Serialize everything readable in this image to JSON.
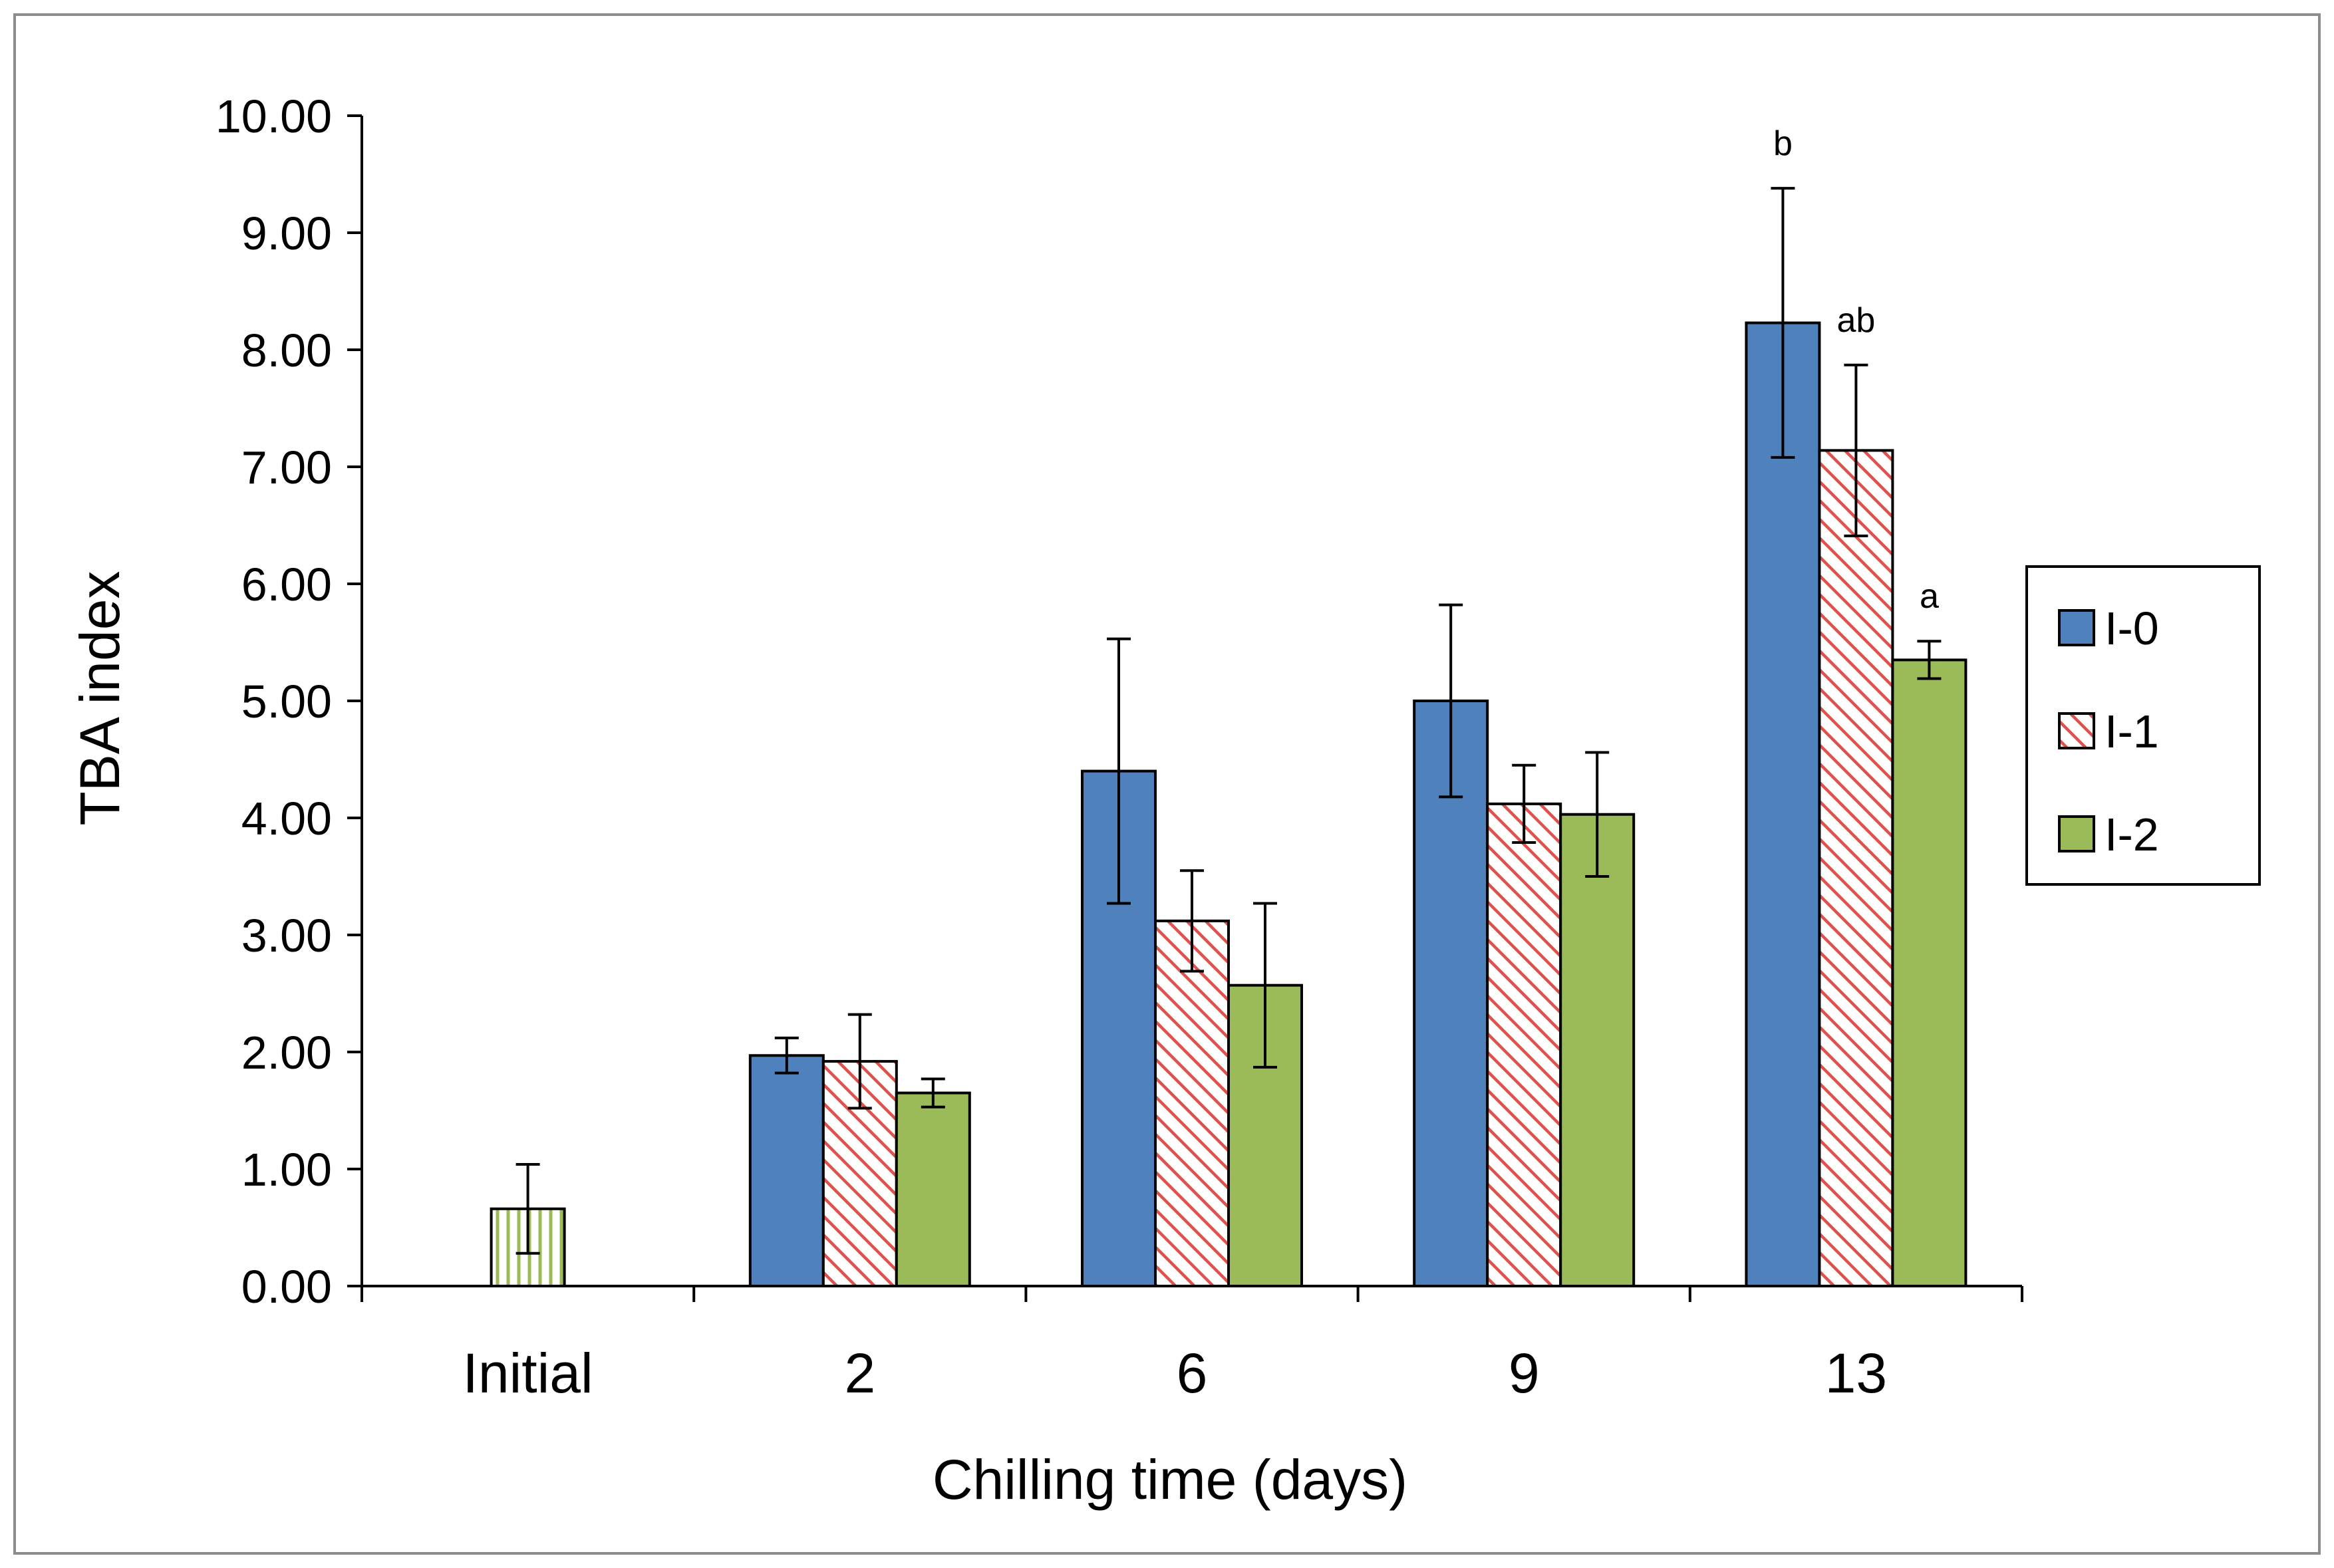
{
  "chart_data": {
    "type": "bar",
    "xlabel": "Chilling time (days)",
    "ylabel": "TBA index",
    "ylim": [
      0,
      10
    ],
    "y_ticks": [
      "0.00",
      "1.00",
      "2.00",
      "3.00",
      "4.00",
      "5.00",
      "6.00",
      "7.00",
      "8.00",
      "9.00",
      "10.00"
    ],
    "categories": [
      "Initial",
      "2",
      "6",
      "9",
      "13"
    ],
    "legend": {
      "position": "right"
    },
    "grid": false,
    "initial": {
      "value": 0.66,
      "error": 0.38,
      "color": "#9bbb59",
      "pattern": "vertical-lines"
    },
    "series": [
      {
        "name": "I-0",
        "color": "#4f81bd",
        "pattern": "solid",
        "values": [
          null,
          1.97,
          4.4,
          5.0,
          8.23
        ],
        "errors": [
          null,
          0.15,
          1.13,
          0.82,
          1.15
        ],
        "letters": [
          null,
          "",
          "",
          "",
          "b"
        ]
      },
      {
        "name": "I-1",
        "color": "#e0504d",
        "pattern": "diagonal-hatch",
        "values": [
          null,
          1.92,
          3.12,
          4.12,
          7.14
        ],
        "errors": [
          null,
          0.4,
          0.43,
          0.33,
          0.73
        ],
        "letters": [
          null,
          "",
          "",
          "",
          "ab"
        ]
      },
      {
        "name": "I-2",
        "color": "#9bbb59",
        "pattern": "solid",
        "values": [
          null,
          1.65,
          2.57,
          4.03,
          5.35
        ],
        "errors": [
          null,
          0.12,
          0.7,
          0.53,
          0.16
        ],
        "letters": [
          null,
          "",
          "",
          "",
          "a"
        ]
      }
    ]
  }
}
